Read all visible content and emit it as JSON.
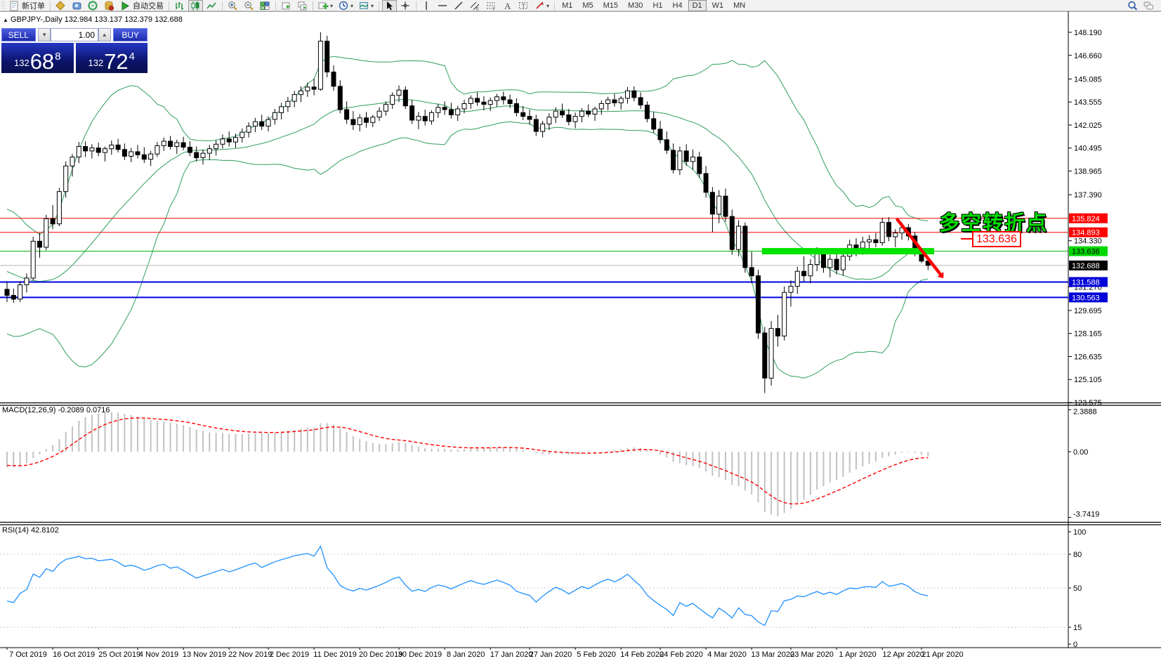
{
  "toolbar": {
    "new_order_label": "新订单",
    "autotrade_label": "自动交易",
    "items": [
      {
        "k": "grip"
      },
      {
        "k": "text",
        "n": "new-order-button",
        "icon": "new-order-icon",
        "bind": "toolbar.new_order_label"
      },
      {
        "k": "sep"
      },
      {
        "k": "icon",
        "n": "chart-profile-icon"
      },
      {
        "k": "icon",
        "n": "profiles-icon"
      },
      {
        "k": "icon",
        "n": "data-window-icon"
      },
      {
        "k": "icon",
        "n": "history-center-icon"
      },
      {
        "k": "text",
        "n": "autotrading-button",
        "icon": "autotrade-icon",
        "bind": "toolbar.autotrade_label"
      },
      {
        "k": "sep"
      },
      {
        "k": "icon",
        "n": "bar-chart-icon"
      },
      {
        "k": "icon",
        "n": "candlestick-chart-icon",
        "pressed": true
      },
      {
        "k": "icon",
        "n": "line-chart-icon"
      },
      {
        "k": "sep"
      },
      {
        "k": "icon",
        "n": "zoom-in-icon"
      },
      {
        "k": "icon",
        "n": "zoom-out-icon"
      },
      {
        "k": "icon",
        "n": "tile-windows-icon"
      },
      {
        "k": "sep"
      },
      {
        "k": "icon",
        "n": "arrange-charts-icon"
      },
      {
        "k": "icon",
        "n": "cascade-charts-icon"
      },
      {
        "k": "sep"
      },
      {
        "k": "icon",
        "n": "new-chart-icon",
        "caret": true
      },
      {
        "k": "icon",
        "n": "period-clock-icon",
        "caret": true
      },
      {
        "k": "icon",
        "n": "template-icon",
        "caret": true
      },
      {
        "k": "sep"
      },
      {
        "k": "icon",
        "n": "cursor-icon",
        "pressed": true
      },
      {
        "k": "icon",
        "n": "crosshair-icon"
      },
      {
        "k": "sep"
      },
      {
        "k": "icon",
        "n": "vertical-line-icon"
      },
      {
        "k": "icon",
        "n": "horizontal-line-icon"
      },
      {
        "k": "icon",
        "n": "trendline-icon"
      },
      {
        "k": "icon",
        "n": "equidistant-channel-icon"
      },
      {
        "k": "icon",
        "n": "fibonacci-icon"
      },
      {
        "k": "icon",
        "n": "text-tool-icon"
      },
      {
        "k": "icon",
        "n": "text-label-icon"
      },
      {
        "k": "icon",
        "n": "arrows-tool-icon",
        "caret": true
      },
      {
        "k": "sep"
      }
    ],
    "timeframes": [
      "M1",
      "M5",
      "M15",
      "M30",
      "H1",
      "H4",
      "D1",
      "W1",
      "MN"
    ],
    "active_timeframe": "D1",
    "right_icons": [
      {
        "n": "symbol-search-icon"
      },
      {
        "n": "chat-icon"
      }
    ]
  },
  "title_overlay": "GBPJPY-,Daily  132.984 133.137 132.379 132.688",
  "one_click": {
    "sell_label": "SELL",
    "buy_label": "BUY",
    "volume": "1.00",
    "sell_small": "132",
    "sell_big": "68",
    "sell_sup": "8",
    "buy_small": "132",
    "buy_big": "72",
    "buy_sup": "4"
  },
  "annotations": {
    "note_text": "多空转折点",
    "note_color": "#00dc00",
    "price_tag": "133.636",
    "band": {
      "from_bar": 116,
      "to_bar": 141.5,
      "price": 133.636,
      "color": "#00e400",
      "thickness": 9
    },
    "arrow": {
      "from_bar": 136.2,
      "from_price": 135.8,
      "to_bar": 142.9,
      "to_price": 132.1,
      "color": "#ff0000"
    }
  },
  "price_axis": {
    "ticks": [
      {
        "label": "148.190",
        "price": 148.19
      },
      {
        "label": "146.660",
        "price": 146.66
      },
      {
        "label": "145.085",
        "price": 145.085
      },
      {
        "label": "143.555",
        "price": 143.555
      },
      {
        "label": "142.025",
        "price": 142.025
      },
      {
        "label": "140.495",
        "price": 140.495
      },
      {
        "label": "138.965",
        "price": 138.965
      },
      {
        "label": "137.390",
        "price": 137.39
      },
      {
        "label": "134.330",
        "price": 134.33
      },
      {
        "label": "131.270",
        "price": 131.27
      },
      {
        "label": "129.695",
        "price": 129.695
      },
      {
        "label": "128.165",
        "price": 128.165
      },
      {
        "label": "126.635",
        "price": 126.635
      },
      {
        "label": "125.105",
        "price": 125.105
      },
      {
        "label": "123.575",
        "price": 123.575
      }
    ]
  },
  "levels": [
    {
      "label": "135.824",
      "price": 135.824,
      "line": "#ff0000",
      "width": 1,
      "badge_bg": "#ff0000",
      "badge_fg": "#ffffff"
    },
    {
      "label": "134.893",
      "price": 134.893,
      "line": "#ff0000",
      "width": 1,
      "badge_bg": "#ff0000",
      "badge_fg": "#ffffff"
    },
    {
      "label": "133.636",
      "price": 133.636,
      "line": "#00b000",
      "width": 1,
      "badge_bg": "#00d800",
      "badge_fg": "#000000"
    },
    {
      "label": "132.688",
      "price": 132.688,
      "line": "#b4b4b4",
      "width": 1,
      "badge_bg": "#000000",
      "badge_fg": "#ffffff"
    },
    {
      "label": "131.588",
      "price": 131.588,
      "line": "#0000e0",
      "width": 2,
      "badge_bg": "#0000d8",
      "badge_fg": "#ffffff"
    },
    {
      "label": "130.563",
      "price": 130.563,
      "line": "#0000e0",
      "width": 2,
      "badge_bg": "#0000d8",
      "badge_fg": "#ffffff"
    }
  ],
  "macd": {
    "label": "MACD(12,26,9)",
    "main_value": "-0.2089",
    "signal_value": "0.0716",
    "axis": [
      {
        "label": "2.3888",
        "value": 2.3888
      },
      {
        "label": "0.00",
        "value": 0.0
      },
      {
        "label": "-3.7419",
        "value": -3.7419
      }
    ]
  },
  "rsi": {
    "label": "RSI(14)",
    "value": "42.8102",
    "axis": [
      100,
      80,
      50,
      15,
      0
    ],
    "dashed_levels": [
      80,
      50,
      15
    ]
  },
  "date_axis": [
    {
      "label": "7 Oct 2019",
      "bar": 0
    },
    {
      "label": "16 Oct 2019",
      "bar": 7
    },
    {
      "label": "25 Oct 2019",
      "bar": 14
    },
    {
      "label": "4 Nov 2019",
      "bar": 20
    },
    {
      "label": "13 Nov 2019",
      "bar": 27
    },
    {
      "label": "22 Nov 2019",
      "bar": 34
    },
    {
      "label": "2 Dec 2019",
      "bar": 40
    },
    {
      "label": "11 Dec 2019",
      "bar": 47
    },
    {
      "label": "20 Dec 2019",
      "bar": 54
    },
    {
      "label": "30 Dec 2019",
      "bar": 60
    },
    {
      "label": "8 Jan 2020",
      "bar": 67
    },
    {
      "label": "17 Jan 2020",
      "bar": 74
    },
    {
      "label": "27 Jan 2020",
      "bar": 80
    },
    {
      "label": "5 Feb 2020",
      "bar": 87
    },
    {
      "label": "14 Feb 2020",
      "bar": 94
    },
    {
      "label": "24 Feb 2020",
      "bar": 100
    },
    {
      "label": "4 Mar 2020",
      "bar": 107
    },
    {
      "label": "13 Mar 2020",
      "bar": 114
    },
    {
      "label": "23 Mar 2020",
      "bar": 120
    },
    {
      "label": "1 Apr 2020",
      "bar": 127
    },
    {
      "label": "12 Apr 2020",
      "bar": 134
    },
    {
      "label": "21 Apr 2020",
      "bar": 140
    }
  ],
  "chart_data": {
    "type": "candlestick",
    "symbol": "GBPJPY-",
    "period": "Daily",
    "ohlc_display": {
      "open": "132.984",
      "high": "133.137",
      "low": "132.379",
      "close": "132.688"
    },
    "y_axis_range": [
      123.575,
      149.6
    ],
    "indicators": [
      "Bollinger Bands(20,2)",
      "MACD(12,26,9)",
      "RSI(14)"
    ],
    "prehistory_closes": [
      133.5,
      134.2,
      134.8,
      135.3,
      135.7,
      135.2,
      134.6,
      134.0,
      133.3,
      132.6,
      131.9,
      131.2,
      130.6,
      130.1,
      129.7,
      129.9,
      130.3,
      130.0,
      130.6,
      131.0
    ],
    "bars": [
      [
        131.1,
        131.6,
        130.25,
        130.7
      ],
      [
        130.7,
        131.15,
        130.2,
        130.45
      ],
      [
        130.45,
        131.65,
        130.25,
        131.4
      ],
      [
        131.4,
        132.15,
        130.9,
        131.85
      ],
      [
        131.85,
        134.6,
        131.7,
        134.3
      ],
      [
        134.3,
        134.85,
        133.2,
        133.9
      ],
      [
        133.9,
        136.05,
        133.7,
        135.8
      ],
      [
        135.8,
        136.7,
        135.1,
        135.45
      ],
      [
        135.45,
        137.85,
        135.3,
        137.6
      ],
      [
        137.6,
        139.6,
        137.2,
        139.3
      ],
      [
        139.3,
        140.1,
        138.6,
        139.9
      ],
      [
        139.9,
        140.9,
        139.5,
        140.6
      ],
      [
        140.6,
        140.95,
        139.9,
        140.3
      ],
      [
        140.3,
        140.75,
        139.8,
        140.5
      ],
      [
        140.5,
        140.85,
        139.95,
        140.2
      ],
      [
        140.2,
        140.6,
        139.6,
        140.45
      ],
      [
        140.45,
        141.0,
        140.05,
        140.7
      ],
      [
        140.7,
        141.1,
        140.2,
        140.4
      ],
      [
        140.4,
        140.8,
        139.7,
        139.95
      ],
      [
        139.95,
        140.5,
        139.55,
        140.25
      ],
      [
        140.25,
        140.7,
        139.8,
        140.05
      ],
      [
        140.05,
        140.55,
        139.5,
        139.75
      ],
      [
        139.75,
        140.3,
        139.3,
        140.1
      ],
      [
        140.1,
        140.9,
        139.9,
        140.65
      ],
      [
        140.65,
        141.2,
        140.3,
        140.95
      ],
      [
        140.95,
        141.3,
        140.4,
        140.6
      ],
      [
        140.6,
        141.05,
        140.1,
        140.85
      ],
      [
        140.85,
        141.25,
        140.35,
        140.55
      ],
      [
        140.55,
        140.95,
        139.95,
        140.2
      ],
      [
        140.2,
        140.6,
        139.6,
        139.85
      ],
      [
        139.85,
        140.4,
        139.4,
        140.15
      ],
      [
        140.15,
        140.7,
        139.7,
        140.45
      ],
      [
        140.45,
        141.0,
        140.0,
        140.75
      ],
      [
        140.75,
        141.4,
        140.45,
        141.1
      ],
      [
        141.1,
        141.6,
        140.6,
        140.9
      ],
      [
        140.9,
        141.45,
        140.5,
        141.2
      ],
      [
        141.2,
        141.8,
        140.85,
        141.55
      ],
      [
        141.55,
        142.2,
        141.2,
        141.95
      ],
      [
        141.95,
        142.5,
        141.55,
        142.25
      ],
      [
        142.25,
        142.7,
        141.7,
        141.95
      ],
      [
        141.95,
        142.6,
        141.6,
        142.4
      ],
      [
        142.4,
        143.1,
        142.05,
        142.85
      ],
      [
        142.85,
        143.5,
        142.4,
        143.25
      ],
      [
        143.25,
        143.9,
        142.9,
        143.6
      ],
      [
        143.6,
        144.3,
        143.2,
        144.05
      ],
      [
        144.05,
        144.6,
        143.55,
        144.3
      ],
      [
        144.3,
        144.85,
        143.9,
        144.55
      ],
      [
        144.55,
        145.1,
        144.0,
        144.4
      ],
      [
        144.4,
        148.2,
        144.3,
        147.6
      ],
      [
        147.6,
        147.95,
        145.2,
        145.55
      ],
      [
        145.55,
        146.0,
        144.3,
        144.6
      ],
      [
        144.6,
        145.0,
        142.8,
        143.05
      ],
      [
        143.05,
        143.6,
        142.1,
        142.4
      ],
      [
        142.4,
        142.95,
        141.7,
        142.05
      ],
      [
        142.05,
        142.75,
        141.6,
        142.5
      ],
      [
        142.5,
        142.9,
        141.85,
        142.2
      ],
      [
        142.2,
        142.7,
        141.9,
        142.55
      ],
      [
        142.55,
        143.2,
        142.3,
        142.95
      ],
      [
        142.95,
        143.6,
        142.65,
        143.4
      ],
      [
        143.4,
        144.2,
        143.1,
        144.0
      ],
      [
        144.0,
        144.65,
        143.55,
        144.35
      ],
      [
        144.35,
        144.6,
        143.1,
        143.3
      ],
      [
        143.3,
        143.7,
        142.1,
        142.35
      ],
      [
        142.35,
        142.9,
        141.75,
        142.6
      ],
      [
        142.6,
        143.05,
        142.0,
        142.3
      ],
      [
        142.3,
        143.0,
        142.05,
        142.85
      ],
      [
        142.85,
        143.45,
        142.5,
        143.2
      ],
      [
        143.2,
        143.6,
        142.7,
        143.05
      ],
      [
        143.05,
        143.5,
        142.45,
        142.7
      ],
      [
        142.7,
        143.3,
        142.3,
        143.1
      ],
      [
        143.1,
        143.7,
        142.8,
        143.45
      ],
      [
        143.45,
        144.0,
        143.1,
        143.8
      ],
      [
        143.8,
        144.2,
        143.3,
        143.55
      ],
      [
        143.55,
        143.95,
        143.0,
        143.4
      ],
      [
        143.4,
        143.85,
        142.95,
        143.65
      ],
      [
        143.65,
        144.1,
        143.25,
        143.9
      ],
      [
        143.9,
        144.25,
        143.4,
        143.7
      ],
      [
        143.7,
        144.05,
        143.15,
        143.45
      ],
      [
        143.45,
        143.8,
        142.6,
        142.85
      ],
      [
        142.85,
        143.3,
        142.35,
        142.6
      ],
      [
        142.6,
        143.05,
        142.05,
        142.4
      ],
      [
        142.4,
        142.7,
        141.3,
        141.6
      ],
      [
        141.6,
        142.3,
        141.2,
        142.1
      ],
      [
        142.1,
        142.8,
        141.7,
        142.55
      ],
      [
        142.55,
        143.2,
        142.15,
        142.95
      ],
      [
        142.95,
        143.45,
        142.5,
        142.7
      ],
      [
        142.7,
        143.1,
        142.0,
        142.25
      ],
      [
        142.25,
        142.85,
        141.8,
        142.6
      ],
      [
        142.6,
        143.15,
        142.2,
        142.95
      ],
      [
        142.95,
        143.4,
        142.55,
        142.75
      ],
      [
        142.75,
        143.25,
        142.3,
        143.1
      ],
      [
        143.1,
        143.65,
        142.7,
        143.45
      ],
      [
        143.45,
        143.9,
        143.0,
        143.7
      ],
      [
        143.7,
        144.1,
        143.25,
        143.5
      ],
      [
        143.5,
        143.95,
        143.05,
        143.8
      ],
      [
        143.8,
        144.55,
        143.45,
        144.3
      ],
      [
        144.3,
        144.6,
        143.6,
        143.85
      ],
      [
        143.85,
        144.2,
        143.1,
        143.35
      ],
      [
        143.35,
        143.6,
        142.2,
        142.45
      ],
      [
        142.45,
        142.9,
        141.5,
        141.75
      ],
      [
        141.75,
        142.3,
        140.8,
        141.05
      ],
      [
        141.05,
        141.6,
        140.1,
        140.35
      ],
      [
        140.35,
        140.8,
        138.8,
        139.05
      ],
      [
        139.05,
        140.6,
        138.7,
        140.3
      ],
      [
        140.3,
        140.75,
        139.3,
        139.6
      ],
      [
        139.6,
        140.4,
        139.05,
        139.9
      ],
      [
        139.9,
        140.25,
        138.5,
        138.8
      ],
      [
        138.8,
        139.3,
        137.2,
        137.55
      ],
      [
        137.55,
        137.9,
        134.9,
        136.1
      ],
      [
        136.1,
        137.7,
        135.5,
        137.3
      ],
      [
        137.3,
        137.8,
        135.6,
        135.95
      ],
      [
        135.95,
        136.4,
        133.4,
        133.75
      ],
      [
        133.75,
        135.7,
        133.3,
        135.3
      ],
      [
        135.3,
        135.55,
        132.2,
        132.55
      ],
      [
        132.55,
        133.6,
        131.5,
        132.0
      ],
      [
        132.0,
        132.4,
        127.8,
        128.2
      ],
      [
        128.2,
        128.6,
        124.2,
        125.2
      ],
      [
        125.2,
        129.0,
        124.7,
        128.5
      ],
      [
        128.5,
        129.4,
        127.3,
        128.0
      ],
      [
        128.0,
        131.3,
        127.7,
        130.9
      ],
      [
        130.9,
        131.7,
        129.95,
        131.3
      ],
      [
        131.3,
        132.6,
        130.8,
        132.3
      ],
      [
        132.3,
        133.3,
        131.6,
        132.0
      ],
      [
        132.0,
        133.1,
        131.5,
        132.75
      ],
      [
        132.75,
        133.9,
        132.3,
        133.45
      ],
      [
        133.45,
        133.7,
        132.2,
        132.55
      ],
      [
        132.55,
        133.4,
        131.9,
        133.1
      ],
      [
        133.1,
        133.5,
        132.1,
        132.4
      ],
      [
        132.4,
        133.6,
        132.0,
        133.3
      ],
      [
        133.3,
        134.4,
        133.0,
        134.05
      ],
      [
        134.05,
        134.5,
        133.3,
        133.85
      ],
      [
        133.85,
        134.6,
        133.4,
        134.25
      ],
      [
        134.25,
        134.7,
        133.8,
        134.4
      ],
      [
        134.4,
        134.85,
        133.9,
        134.2
      ],
      [
        134.2,
        135.85,
        134.0,
        135.55
      ],
      [
        135.55,
        135.9,
        134.3,
        134.6
      ],
      [
        134.6,
        135.1,
        133.9,
        134.85
      ],
      [
        134.85,
        135.55,
        134.4,
        135.2
      ],
      [
        135.2,
        135.45,
        134.35,
        134.65
      ],
      [
        134.65,
        134.9,
        133.3,
        133.6
      ],
      [
        133.6,
        133.85,
        132.85,
        132.98
      ],
      [
        132.98,
        133.14,
        132.38,
        132.69
      ]
    ]
  }
}
